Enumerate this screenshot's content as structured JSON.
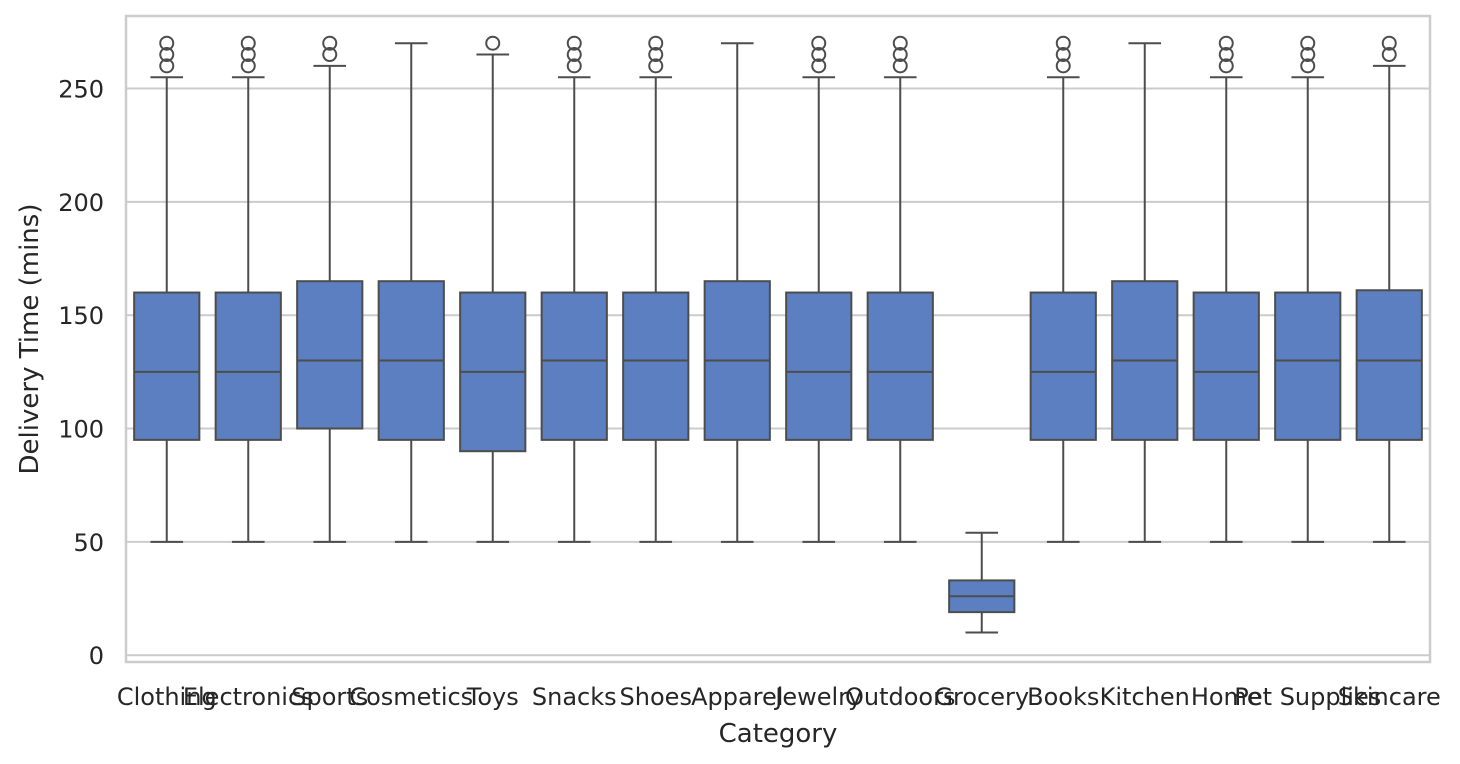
{
  "chart_data": {
    "type": "box",
    "title": "",
    "xlabel": "Category",
    "ylabel": "Delivery Time (mins)",
    "ylim": [
      -3,
      282
    ],
    "yticks": [
      0,
      50,
      100,
      150,
      200,
      250
    ],
    "grid": "horizontal",
    "box_color": "#5b7fc1",
    "line_color": "#4d4d4d",
    "categories": [
      "Clothing",
      "Electronics",
      "Sports",
      "Cosmetics",
      "Toys",
      "Snacks",
      "Shoes",
      "Apparel",
      "Jewelry",
      "Outdoors",
      "Grocery",
      "Books",
      "Kitchen",
      "Home",
      "Pet Supplies",
      "Skincare"
    ],
    "boxes": [
      {
        "category": "Clothing",
        "whisker_low": 50,
        "q1": 95,
        "median": 125,
        "q3": 160,
        "whisker_high": 255,
        "outliers": [
          260,
          265,
          270
        ]
      },
      {
        "category": "Electronics",
        "whisker_low": 50,
        "q1": 95,
        "median": 125,
        "q3": 160,
        "whisker_high": 255,
        "outliers": [
          260,
          265,
          270
        ]
      },
      {
        "category": "Sports",
        "whisker_low": 50,
        "q1": 100,
        "median": 130,
        "q3": 165,
        "whisker_high": 260,
        "outliers": [
          265,
          270
        ]
      },
      {
        "category": "Cosmetics",
        "whisker_low": 50,
        "q1": 95,
        "median": 130,
        "q3": 165,
        "whisker_high": 270,
        "outliers": []
      },
      {
        "category": "Toys",
        "whisker_low": 50,
        "q1": 90,
        "median": 125,
        "q3": 160,
        "whisker_high": 265,
        "outliers": [
          270
        ]
      },
      {
        "category": "Snacks",
        "whisker_low": 50,
        "q1": 95,
        "median": 130,
        "q3": 160,
        "whisker_high": 255,
        "outliers": [
          260,
          265,
          270
        ]
      },
      {
        "category": "Shoes",
        "whisker_low": 50,
        "q1": 95,
        "median": 130,
        "q3": 160,
        "whisker_high": 255,
        "outliers": [
          260,
          265,
          270
        ]
      },
      {
        "category": "Apparel",
        "whisker_low": 50,
        "q1": 95,
        "median": 130,
        "q3": 165,
        "whisker_high": 270,
        "outliers": []
      },
      {
        "category": "Jewelry",
        "whisker_low": 50,
        "q1": 95,
        "median": 125,
        "q3": 160,
        "whisker_high": 255,
        "outliers": [
          260,
          265,
          270
        ]
      },
      {
        "category": "Outdoors",
        "whisker_low": 50,
        "q1": 95,
        "median": 125,
        "q3": 160,
        "whisker_high": 255,
        "outliers": [
          260,
          265,
          270
        ]
      },
      {
        "category": "Grocery",
        "whisker_low": 10,
        "q1": 19,
        "median": 26,
        "q3": 33,
        "whisker_high": 54,
        "outliers": []
      },
      {
        "category": "Books",
        "whisker_low": 50,
        "q1": 95,
        "median": 125,
        "q3": 160,
        "whisker_high": 255,
        "outliers": [
          260,
          265,
          270
        ]
      },
      {
        "category": "Kitchen",
        "whisker_low": 50,
        "q1": 95,
        "median": 130,
        "q3": 165,
        "whisker_high": 270,
        "outliers": []
      },
      {
        "category": "Home",
        "whisker_low": 50,
        "q1": 95,
        "median": 125,
        "q3": 160,
        "whisker_high": 255,
        "outliers": [
          260,
          265,
          270
        ]
      },
      {
        "category": "Pet Supplies",
        "whisker_low": 50,
        "q1": 95,
        "median": 130,
        "q3": 160,
        "whisker_high": 255,
        "outliers": [
          260,
          265,
          270
        ]
      },
      {
        "category": "Skincare",
        "whisker_low": 50,
        "q1": 95,
        "median": 130,
        "q3": 161,
        "whisker_high": 260,
        "outliers": [
          265,
          270
        ]
      }
    ]
  }
}
